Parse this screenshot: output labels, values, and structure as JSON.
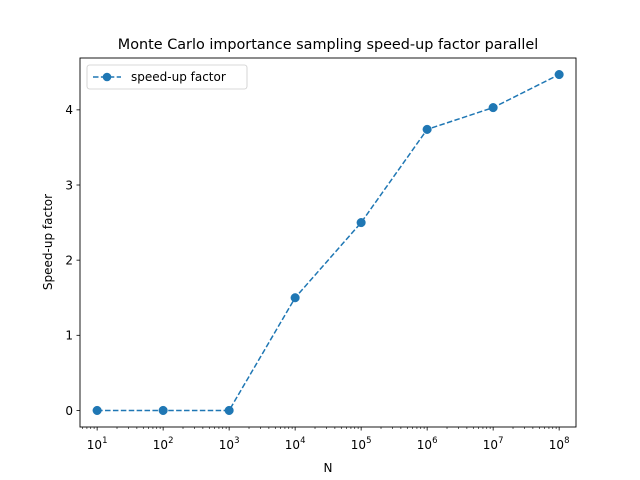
{
  "chart_data": {
    "type": "line",
    "title": "Monte Carlo importance sampling speed-up factor parallel",
    "xlabel": "N",
    "ylabel": "Speed-up factor",
    "xscale": "log",
    "xlim": [
      5.5,
      180000000
    ],
    "ylim": [
      -0.22,
      4.69
    ],
    "grid": false,
    "legend_position": "upper left",
    "x_ticks": [
      {
        "base": "10",
        "exp": "1",
        "value": 10
      },
      {
        "base": "10",
        "exp": "2",
        "value": 100
      },
      {
        "base": "10",
        "exp": "3",
        "value": 1000
      },
      {
        "base": "10",
        "exp": "4",
        "value": 10000
      },
      {
        "base": "10",
        "exp": "5",
        "value": 100000
      },
      {
        "base": "10",
        "exp": "6",
        "value": 1000000
      },
      {
        "base": "10",
        "exp": "7",
        "value": 10000000
      },
      {
        "base": "10",
        "exp": "8",
        "value": 100000000
      }
    ],
    "y_ticks": [
      0,
      1,
      2,
      3,
      4
    ],
    "series": [
      {
        "name": "speed-up factor",
        "color": "#1f77b4",
        "line_style": "dashed",
        "marker": "circle",
        "x": [
          10,
          100,
          1000,
          10000,
          100000,
          1000000,
          10000000,
          100000000
        ],
        "y": [
          0.0,
          0.0,
          0.0,
          1.5,
          2.5,
          3.74,
          4.03,
          4.47
        ]
      }
    ]
  }
}
